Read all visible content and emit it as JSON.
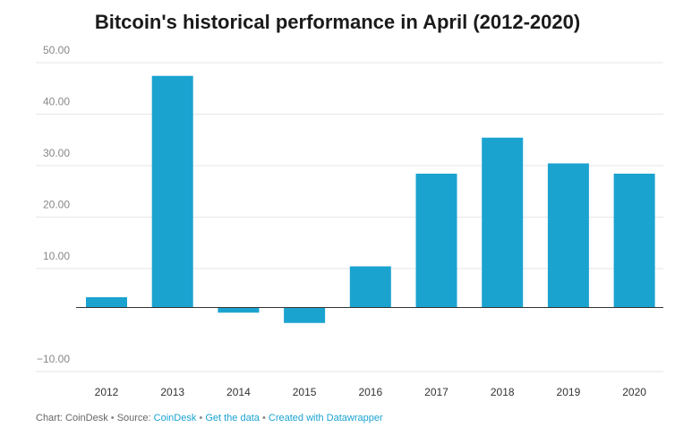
{
  "chart_data": {
    "type": "bar",
    "title": "Bitcoin's historical performance in April (2012-2020)",
    "categories": [
      "2012",
      "2013",
      "2014",
      "2015",
      "2016",
      "2017",
      "2018",
      "2019",
      "2020"
    ],
    "values": [
      2,
      45,
      -1,
      -3,
      8,
      26,
      33,
      28,
      26
    ],
    "yticks": [
      -10,
      10,
      20,
      30,
      40,
      50
    ],
    "ytick_labels": [
      "−10.00",
      "10.00",
      "20.00",
      "30.00",
      "40.00",
      "50.00"
    ],
    "ylim": [
      -10,
      50
    ],
    "xlabel": "",
    "ylabel": "",
    "grid": true,
    "bar_color": "#1ba3d0"
  },
  "footer": {
    "chart_by": "Chart: CoinDesk",
    "source_prefix": "Source:",
    "source_link": "CoinDesk",
    "get_data": "Get the data",
    "created_with": "Created with Datawrapper",
    "separator": "•"
  }
}
